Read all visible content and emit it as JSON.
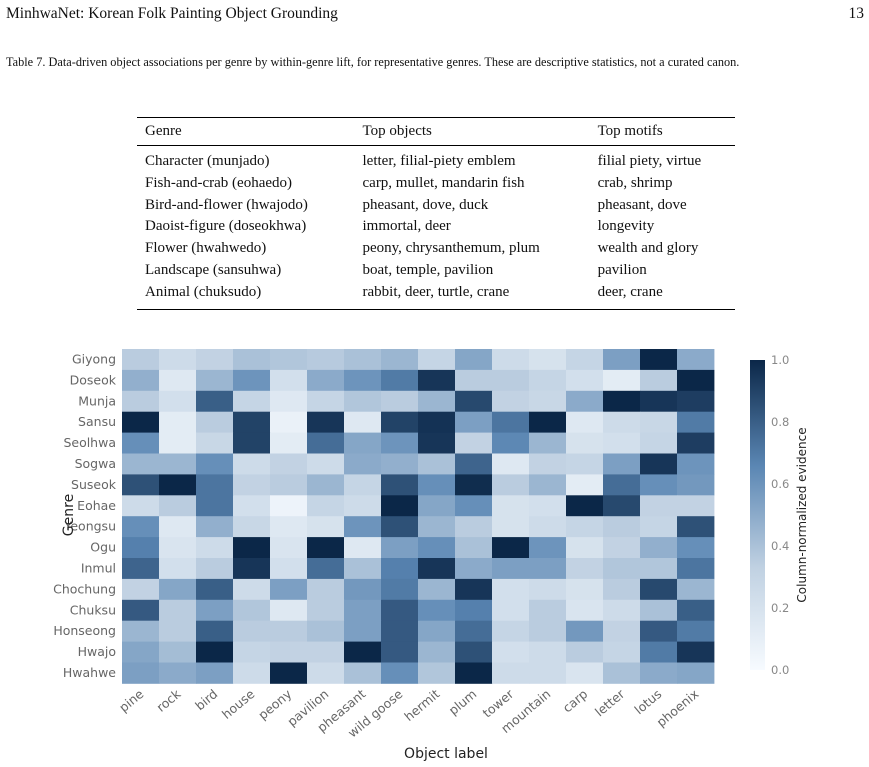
{
  "header": {
    "title": "MinhwaNet: Korean Folk Painting Object Grounding",
    "page_number": "13"
  },
  "caption": {
    "label": "Table 7.",
    "text": "Data-driven object associations per genre by within-genre lift, for representative genres. These are descriptive statistics, not a curated canon."
  },
  "table": {
    "columns": [
      "Genre",
      "Top objects",
      "Top motifs"
    ],
    "rows": [
      [
        "Character (munjado)",
        "letter, filial-piety emblem",
        "filial piety, virtue"
      ],
      [
        "Fish-and-crab (eohaedo)",
        "carp, mullet, mandarin fish",
        "crab, shrimp"
      ],
      [
        "Bird-and-flower (hwajodo)",
        "pheasant, dove, duck",
        "pheasant, dove"
      ],
      [
        "Daoist-figure (doseokhwa)",
        "immortal, deer",
        "longevity"
      ],
      [
        "Flower (hwahwedo)",
        "peony, chrysanthemum, plum",
        "wealth and glory"
      ],
      [
        "Landscape (sansuhwa)",
        "boat, temple, pavilion",
        "pavilion"
      ],
      [
        "Animal (chuksudo)",
        "rabbit, deer, turtle, crane",
        "deer, crane"
      ]
    ]
  },
  "chart_data": {
    "type": "heatmap",
    "xlabel": "Object label",
    "ylabel": "Genre",
    "colorbar_label": "Column-normalized evidence",
    "colorbar_ticks": [
      "0.0",
      "0.2",
      "0.4",
      "0.6",
      "0.8",
      "1.0"
    ],
    "vmin": 0.0,
    "vmax": 1.0,
    "colormap": [
      "#f7fbff",
      "#c0d1e2",
      "#5a86b3",
      "#0b2748"
    ],
    "x_categories": [
      "pine",
      "rock",
      "bird",
      "house",
      "peony",
      "pavilion",
      "pheasant",
      "wild goose",
      "hermit",
      "plum",
      "tower",
      "mountain",
      "carp",
      "letter",
      "lotus",
      "phoenix"
    ],
    "y_categories": [
      "Giyong",
      "Doseok",
      "Munja",
      "Sansu",
      "Seolhwa",
      "Sogwa",
      "Suseok",
      "Eohae",
      "Yeongsu",
      "Ogu",
      "Inmul",
      "Chochung",
      "Chuksu",
      "Honseong",
      "Hwajo",
      "Hwahwe"
    ],
    "values": [
      [
        0.35,
        0.25,
        0.32,
        0.4,
        0.38,
        0.36,
        0.4,
        0.45,
        0.3,
        0.52,
        0.25,
        0.2,
        0.3,
        0.55,
        1.0,
        0.5
      ],
      [
        0.48,
        0.15,
        0.45,
        0.6,
        0.22,
        0.5,
        0.6,
        0.7,
        0.95,
        0.35,
        0.35,
        0.3,
        0.22,
        0.12,
        0.35,
        1.0
      ],
      [
        0.35,
        0.22,
        0.8,
        0.3,
        0.15,
        0.3,
        0.38,
        0.35,
        0.45,
        0.88,
        0.32,
        0.28,
        0.5,
        1.0,
        0.95,
        0.92
      ],
      [
        1.0,
        0.12,
        0.35,
        0.9,
        0.08,
        0.95,
        0.15,
        0.9,
        0.96,
        0.55,
        0.72,
        1.0,
        0.15,
        0.25,
        0.28,
        0.7
      ],
      [
        0.62,
        0.12,
        0.28,
        0.9,
        0.12,
        0.75,
        0.52,
        0.6,
        0.95,
        0.32,
        0.65,
        0.45,
        0.2,
        0.22,
        0.3,
        0.92
      ],
      [
        0.45,
        0.45,
        0.62,
        0.25,
        0.32,
        0.25,
        0.5,
        0.48,
        0.4,
        0.78,
        0.15,
        0.32,
        0.3,
        0.55,
        0.95,
        0.6
      ],
      [
        0.85,
        1.0,
        0.72,
        0.32,
        0.35,
        0.45,
        0.3,
        0.85,
        0.62,
        0.98,
        0.35,
        0.45,
        0.12,
        0.75,
        0.62,
        0.58
      ],
      [
        0.25,
        0.35,
        0.72,
        0.22,
        0.06,
        0.3,
        0.25,
        1.0,
        0.52,
        0.62,
        0.2,
        0.22,
        1.0,
        0.88,
        0.32,
        0.32
      ],
      [
        0.62,
        0.15,
        0.48,
        0.28,
        0.15,
        0.2,
        0.6,
        0.85,
        0.45,
        0.35,
        0.2,
        0.25,
        0.3,
        0.35,
        0.3,
        0.85
      ],
      [
        0.68,
        0.18,
        0.25,
        1.0,
        0.18,
        1.0,
        0.15,
        0.55,
        0.62,
        0.4,
        1.0,
        0.6,
        0.2,
        0.32,
        0.48,
        0.62
      ],
      [
        0.78,
        0.22,
        0.35,
        0.95,
        0.22,
        0.75,
        0.4,
        0.68,
        0.95,
        0.5,
        0.55,
        0.55,
        0.32,
        0.38,
        0.38,
        0.72
      ],
      [
        0.32,
        0.52,
        0.8,
        0.25,
        0.55,
        0.35,
        0.58,
        0.7,
        0.45,
        0.95,
        0.22,
        0.25,
        0.2,
        0.35,
        0.88,
        0.45
      ],
      [
        0.82,
        0.35,
        0.55,
        0.38,
        0.15,
        0.35,
        0.55,
        0.82,
        0.62,
        0.68,
        0.22,
        0.35,
        0.18,
        0.25,
        0.4,
        0.8
      ],
      [
        0.45,
        0.35,
        0.8,
        0.35,
        0.35,
        0.4,
        0.55,
        0.82,
        0.52,
        0.75,
        0.3,
        0.35,
        0.58,
        0.32,
        0.82,
        0.7
      ],
      [
        0.52,
        0.42,
        1.0,
        0.3,
        0.32,
        0.32,
        1.0,
        0.82,
        0.45,
        0.85,
        0.22,
        0.25,
        0.35,
        0.3,
        0.7,
        0.95
      ],
      [
        0.55,
        0.5,
        0.55,
        0.25,
        1.0,
        0.25,
        0.4,
        0.62,
        0.38,
        1.0,
        0.25,
        0.25,
        0.18,
        0.4,
        0.5,
        0.52
      ]
    ]
  }
}
